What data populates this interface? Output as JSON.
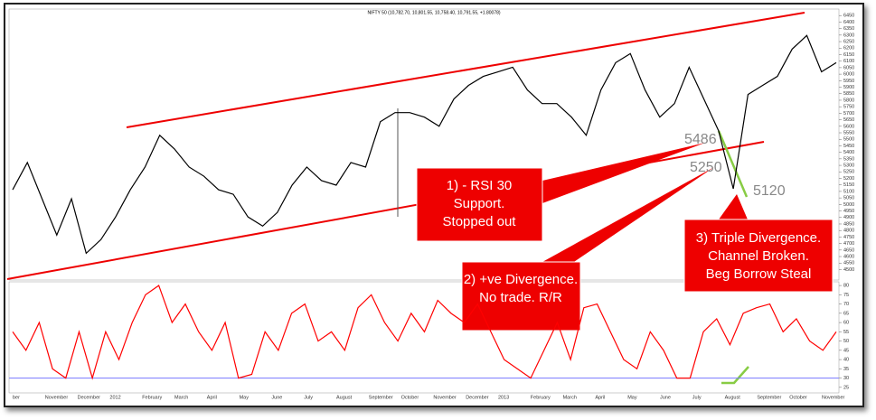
{
  "chart_data": [
    {
      "type": "line",
      "title": "NIFTY 50 (10,782.70, 10,801.55, 10,758.40, 10,791.55, +1.80078)",
      "color": "#000000",
      "values": [
        5113,
        5322,
        5043,
        4765,
        5043,
        4625,
        4730,
        4904,
        5113,
        5287,
        5531,
        5426,
        5287,
        5217,
        5113,
        5078,
        4904,
        4834,
        4939,
        5148,
        5287,
        5183,
        5148,
        5322,
        5287,
        5635,
        5705,
        5705,
        5670,
        5600,
        5809,
        5914,
        5983,
        6018,
        6053,
        5879,
        5774,
        5774,
        5670,
        5531,
        5879,
        6088,
        6158,
        5879,
        5670,
        5774,
        6053,
        5809,
        5566,
        5120,
        5844,
        5914,
        5983,
        6192,
        6297,
        6018,
        6088
      ],
      "ylim": [
        4420,
        6500
      ],
      "yticks": [
        4500,
        4550,
        4600,
        4650,
        4700,
        4750,
        4800,
        4850,
        4900,
        4950,
        5000,
        5050,
        5100,
        5150,
        5200,
        5250,
        5300,
        5350,
        5400,
        5450,
        5500,
        5550,
        5600,
        5650,
        5700,
        5750,
        5800,
        5850,
        5900,
        5950,
        6000,
        6050,
        6100,
        6150,
        6200,
        6250,
        6300,
        6350,
        6400,
        6450
      ],
      "annotations": {
        "levels": [
          "5486",
          "5250",
          "5120"
        ],
        "callouts": [
          [
            "1) - RSI 30",
            "Support.",
            "Stopped out"
          ],
          [
            "2) +ve Divergence.",
            "No trade. R/R"
          ],
          [
            "3) Triple Divergence.",
            "Channel Broken.",
            "Beg Borrow Steal"
          ]
        ]
      }
    },
    {
      "type": "line",
      "color": "#ff0000",
      "values": [
        55,
        45,
        60,
        35,
        30,
        55,
        30,
        55,
        40,
        60,
        75,
        80,
        60,
        70,
        55,
        45,
        60,
        30,
        32,
        55,
        45,
        65,
        70,
        50,
        55,
        45,
        68,
        75,
        60,
        50,
        65,
        55,
        72,
        65,
        60,
        70,
        55,
        40,
        35,
        30,
        45,
        60,
        40,
        68,
        70,
        55,
        40,
        35,
        55,
        45,
        30,
        30,
        55,
        62,
        48,
        65,
        68,
        70,
        55,
        62,
        50,
        45,
        55
      ],
      "ylim": [
        22,
        82
      ],
      "yticks": [
        25,
        30,
        35,
        40,
        45,
        50,
        55,
        60,
        65,
        70,
        75,
        80
      ],
      "reference_line": {
        "value": 30,
        "color": "#7777ff"
      },
      "x_axis_labels": [
        "ber",
        "November",
        "December",
        "2012",
        "February",
        "March",
        "April",
        "May",
        "June",
        "July",
        "August",
        "September",
        "October",
        "November",
        "December",
        "2013",
        "February",
        "March",
        "April",
        "May",
        "June",
        "July",
        "August",
        "September",
        "October",
        "November"
      ]
    }
  ]
}
